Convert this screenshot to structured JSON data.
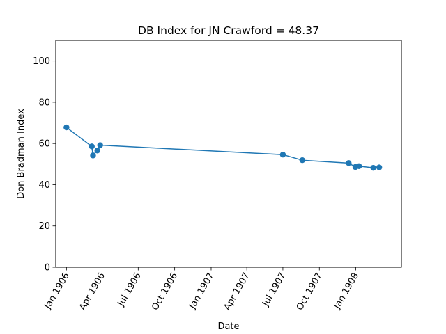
{
  "chart_data": {
    "type": "line",
    "title": "DB Index for JN Crawford = 48.37",
    "xlabel": "Date",
    "ylabel": "Don Bradman Index",
    "x_ticks": [
      "1906-01-01",
      "1906-04-01",
      "1906-07-01",
      "1906-10-01",
      "1907-01-01",
      "1907-04-01",
      "1907-07-01",
      "1907-10-01",
      "1908-01-01"
    ],
    "x_tick_labels": [
      "Jan 1906",
      "Apr 1906",
      "Jul 1906",
      "Oct 1906",
      "Jan 1907",
      "Apr 1907",
      "Jul 1907",
      "Oct 1907",
      "Jan 1908"
    ],
    "y_ticks": [
      0,
      20,
      40,
      60,
      80,
      100
    ],
    "ylim": [
      0,
      110
    ],
    "xlim": [
      "1905-12-05",
      "1908-04-25"
    ],
    "grid": false,
    "series": [
      {
        "color": "#1f77b4",
        "marker": "circle",
        "points": [
          {
            "x": "1906-01-01",
            "y": 67.8
          },
          {
            "x": "1906-03-06",
            "y": 58.6
          },
          {
            "x": "1906-03-09",
            "y": 54.2
          },
          {
            "x": "1906-03-20",
            "y": 56.6
          },
          {
            "x": "1906-03-27",
            "y": 59.2
          },
          {
            "x": "1907-07-01",
            "y": 54.6
          },
          {
            "x": "1907-08-19",
            "y": 51.9
          },
          {
            "x": "1907-12-14",
            "y": 50.5
          },
          {
            "x": "1907-12-31",
            "y": 48.6
          },
          {
            "x": "1908-01-09",
            "y": 49.0
          },
          {
            "x": "1908-02-14",
            "y": 48.2
          },
          {
            "x": "1908-02-29",
            "y": 48.4
          }
        ]
      }
    ]
  }
}
